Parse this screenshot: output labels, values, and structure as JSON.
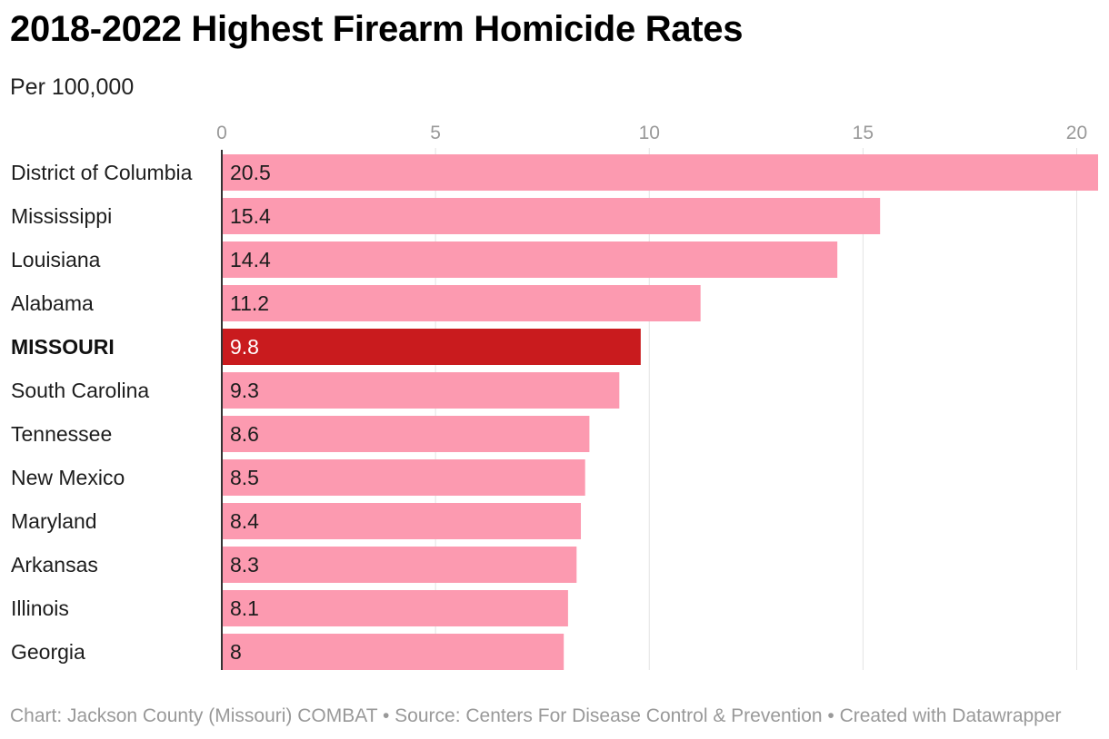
{
  "chart_data": {
    "type": "bar",
    "orientation": "horizontal",
    "title": "2018-2022 Highest Firearm Homicide Rates",
    "subtitle": "Per 100,000",
    "categories": [
      "District of Columbia",
      "Mississippi",
      "Louisiana",
      "Alabama",
      "MISSOURI",
      "South Carolina",
      "Tennessee",
      "New Mexico",
      "Maryland",
      "Arkansas",
      "Illinois",
      "Georgia"
    ],
    "values": [
      20.5,
      15.4,
      14.4,
      11.2,
      9.8,
      9.3,
      8.6,
      8.5,
      8.4,
      8.3,
      8.1,
      8
    ],
    "value_labels": [
      "20.5",
      "15.4",
      "14.4",
      "11.2",
      "9.8",
      "9.3",
      "8.6",
      "8.5",
      "8.4",
      "8.3",
      "8.1",
      "8"
    ],
    "highlight": "MISSOURI",
    "xticks": [
      0,
      5,
      10,
      15,
      20
    ],
    "xtick_labels": [
      "0",
      "5",
      "10",
      "15",
      "20"
    ],
    "xlim": [
      0,
      20.5
    ],
    "grid": true,
    "colors": {
      "bar": "#fc9ab0",
      "highlight": "#c91b1e",
      "grid": "#e3e3e3",
      "axis": "#333333"
    }
  },
  "footer": {
    "text": "Chart: Jackson County (Missouri) COMBAT • Source: Centers For Disease Control & Prevention • Created with Datawrapper"
  }
}
